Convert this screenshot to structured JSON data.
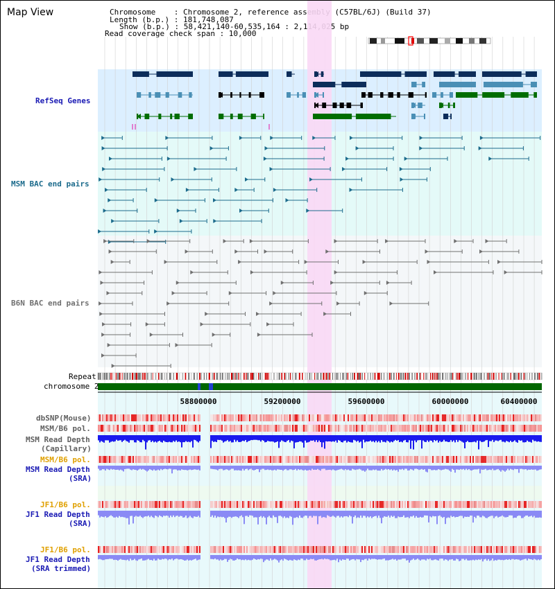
{
  "header": {
    "title": "Map View",
    "chromosome_line": "Chromosome    : Chromosome 2, reference assembly (C57BL/6J) (Build 37)",
    "length_line": "Length (b.p.) : 181,748,087",
    "show_line": "Show (b.p.) : 58,421,140-60,535,164 : 2,114,025 bp",
    "coverage_line": "Read coverage check span : 10,000"
  },
  "tracks": {
    "refseq": "RefSeq Genes",
    "msm_bac": "MSM BAC end pairs",
    "b6n_bac": "B6N BAC end pairs",
    "repeat": "Repeat",
    "chromosome": "chromosome 2",
    "dbsnp": "dbSNP(Mouse)",
    "msm_b6_pol": "MSM/B6 pol.",
    "msm_depth_cap_1": "MSM Read Depth",
    "msm_depth_cap_2": "(Capillary)",
    "msm_b6_pol_sra": "MSM/B6 pol.",
    "msm_depth_sra_1": "MSM Read Depth",
    "msm_depth_sra_2": "(SRA)",
    "jf1_b6_pol": "JF1/B6 pol.",
    "jf1_depth_1": "JF1 Read Depth",
    "jf1_depth_2": "(SRA)",
    "jf1_b6_pol_trim": "JF1/B6 pol.",
    "jf1_trim_1": "JF1 Read Depth",
    "jf1_trim_2": "(SRA trimmed)"
  },
  "axis": {
    "ticks": [
      "58800000",
      "59200000",
      "59600000",
      "60000000",
      "60400000"
    ]
  },
  "colors": {
    "refseq_bg": "#dcefff",
    "bac_bg": "#e4faf8",
    "highlight": "#f9d8f5",
    "gene_navy": "#0c2d5a",
    "gene_teal": "#4a8fb5",
    "gene_green": "#006d00",
    "msm_bac": "#1c6b8c",
    "b6n_bac": "#707070",
    "chrom_green": "#006600",
    "depth_blue": "#1a1aee",
    "depth_light": "#8a8af5",
    "label_blue": "#1a1ab4",
    "label_orange": "#e0a000"
  }
}
